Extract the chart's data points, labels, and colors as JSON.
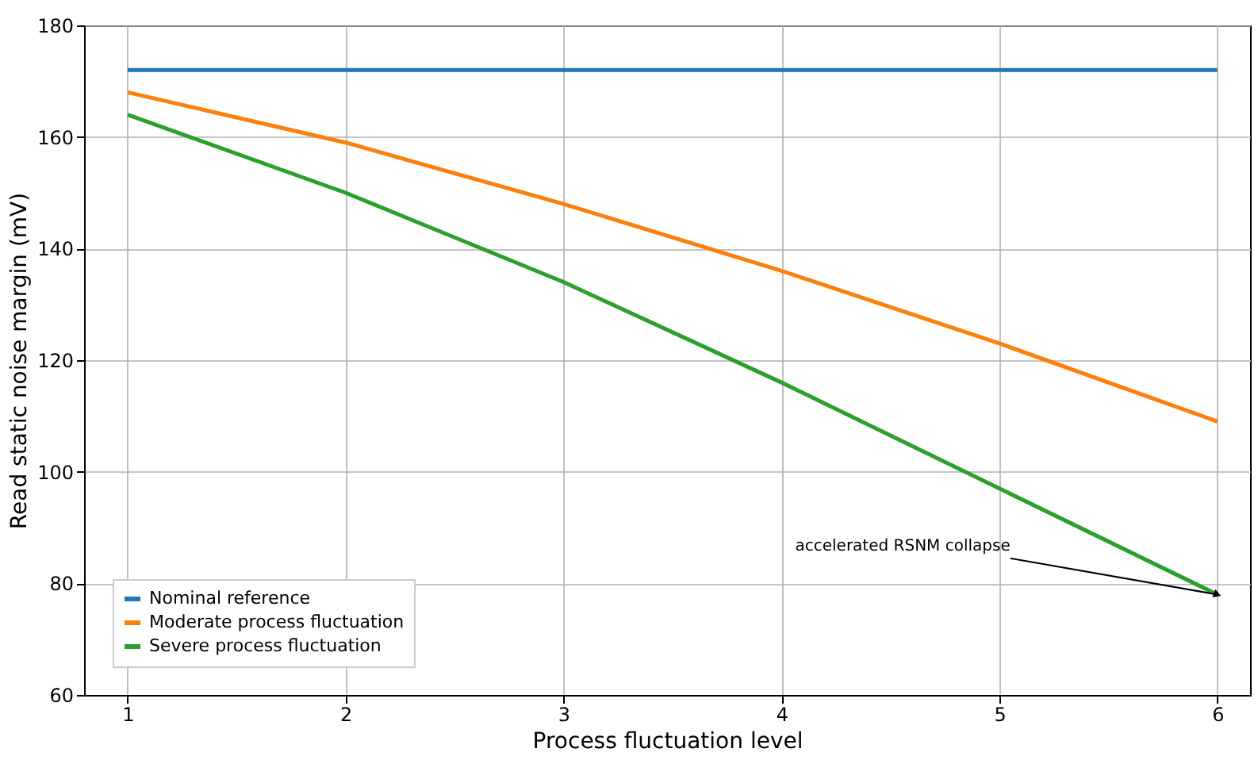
{
  "chart_data": {
    "type": "line",
    "xlabel": "Process fluctuation level",
    "ylabel": "Read static noise margin (mV)",
    "x": [
      1,
      2,
      3,
      4,
      5,
      6
    ],
    "series": [
      {
        "name": "Nominal reference",
        "color": "#1f77b4",
        "values": [
          172,
          172,
          172,
          172,
          172,
          172
        ]
      },
      {
        "name": "Moderate process fluctuation",
        "color": "#ff7f0e",
        "values": [
          168,
          159,
          148,
          136,
          123,
          109
        ]
      },
      {
        "name": "Severe process fluctuation",
        "color": "#2ca02c",
        "values": [
          164,
          150,
          134,
          116,
          97,
          78
        ]
      }
    ],
    "xlim": [
      0.8,
      6.15
    ],
    "xticks": [
      1,
      2,
      3,
      4,
      5,
      6
    ],
    "ylim": [
      60,
      180
    ],
    "yticks": [
      60,
      80,
      100,
      120,
      140,
      160,
      180
    ],
    "grid": true,
    "legend": "bottom left",
    "marker": "none",
    "line_style": "solid",
    "annotations": [
      {
        "text": "accelerated RSNM collapse",
        "x": 6,
        "y": 78
      }
    ]
  }
}
